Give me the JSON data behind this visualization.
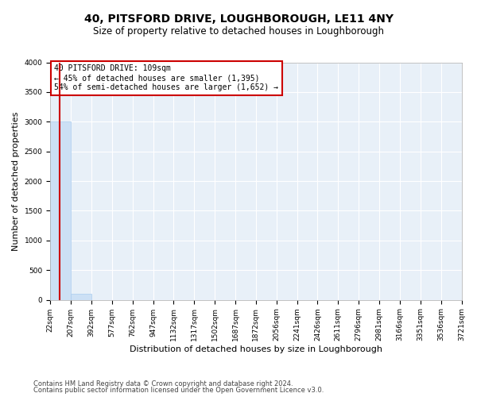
{
  "title": "40, PITSFORD DRIVE, LOUGHBOROUGH, LE11 4NY",
  "subtitle": "Size of property relative to detached houses in Loughborough",
  "xlabel": "Distribution of detached houses by size in Loughborough",
  "ylabel": "Number of detached properties",
  "bin_labels": [
    "22sqm",
    "207sqm",
    "392sqm",
    "577sqm",
    "762sqm",
    "947sqm",
    "1132sqm",
    "1317sqm",
    "1502sqm",
    "1687sqm",
    "1872sqm",
    "2056sqm",
    "2241sqm",
    "2426sqm",
    "2611sqm",
    "2796sqm",
    "2981sqm",
    "3166sqm",
    "3351sqm",
    "3536sqm",
    "3721sqm"
  ],
  "bar_heights": [
    3000,
    100,
    0,
    0,
    0,
    0,
    0,
    0,
    0,
    0,
    0,
    0,
    0,
    0,
    0,
    0,
    0,
    0,
    0,
    0
  ],
  "bar_color": "#cce0f5",
  "bar_edge_color": "#aaccee",
  "ylim": [
    0,
    4000
  ],
  "yticks": [
    0,
    500,
    1000,
    1500,
    2000,
    2500,
    3000,
    3500,
    4000
  ],
  "property_size": 109,
  "annotation_text_line1": "40 PITSFORD DRIVE: 109sqm",
  "annotation_text_line2": "← 45% of detached houses are smaller (1,395)",
  "annotation_text_line3": "54% of semi-detached houses are larger (1,652) →",
  "footer_line1": "Contains HM Land Registry data © Crown copyright and database right 2024.",
  "footer_line2": "Contains public sector information licensed under the Open Government Licence v3.0.",
  "bg_color": "#e8f0f8",
  "grid_color": "#ffffff",
  "red_line_color": "#cc0000",
  "annotation_box_color": "#cc0000",
  "title_fontsize": 10,
  "subtitle_fontsize": 8.5,
  "axis_label_fontsize": 8,
  "tick_fontsize": 6.5,
  "annotation_fontsize": 7,
  "footer_fontsize": 6
}
